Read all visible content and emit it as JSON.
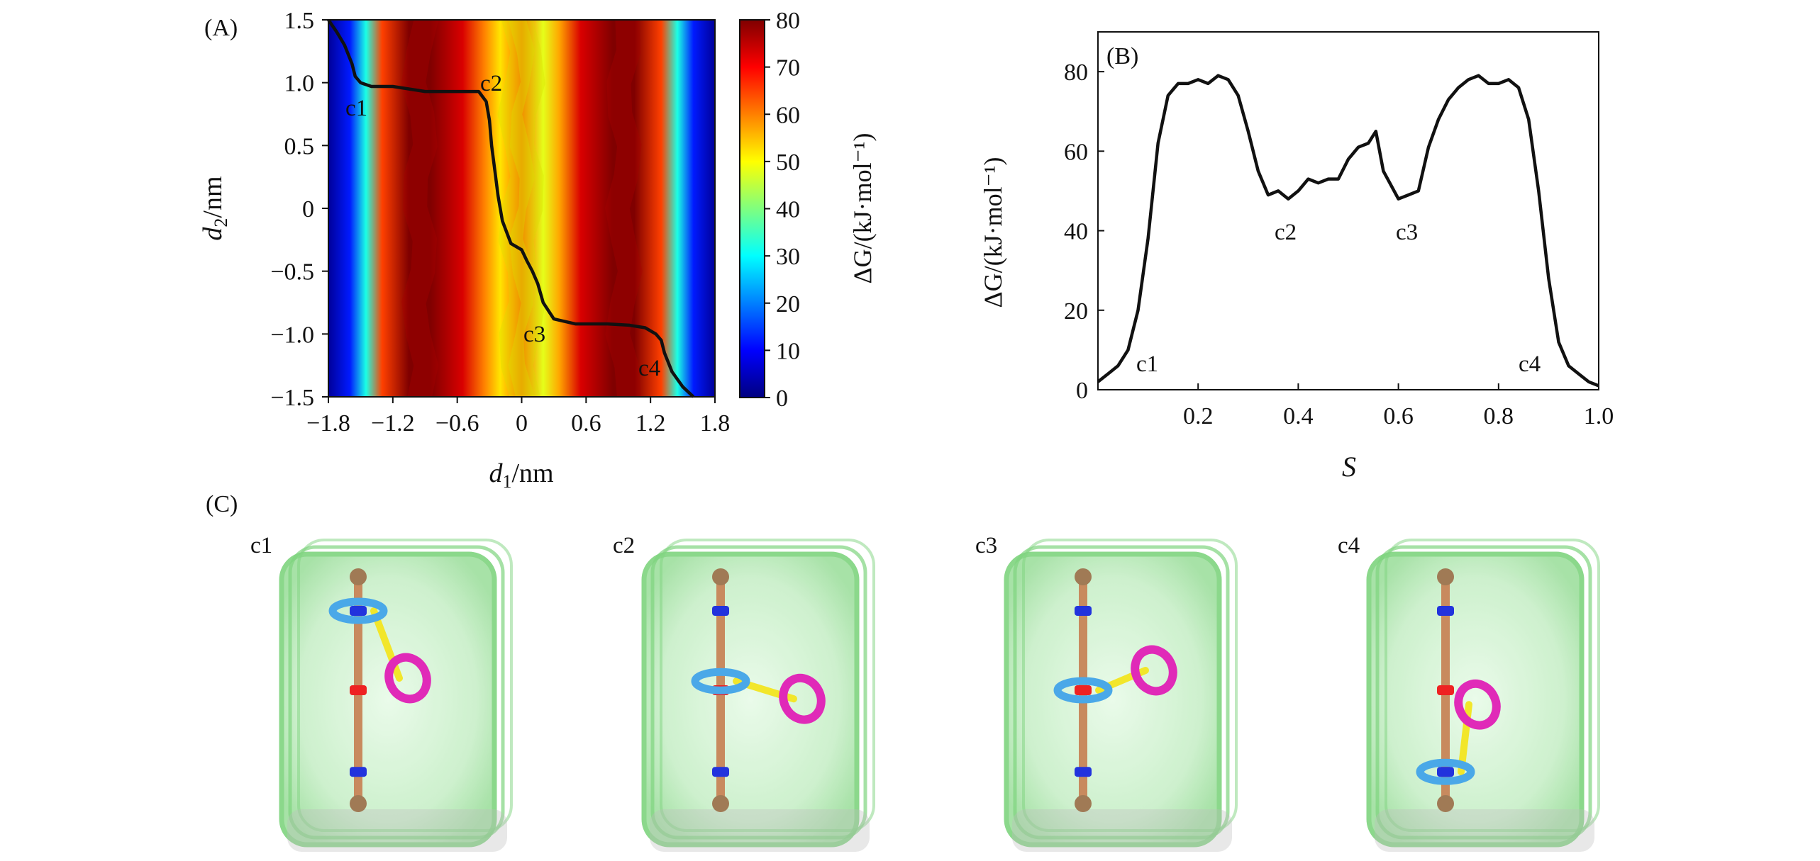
{
  "panels": {
    "A": {
      "label": "(A)",
      "xlabel_var": "d",
      "xlabel_sub": "1",
      "xlabel_unit": "/nm",
      "ylabel_var": "d",
      "ylabel_sub": "2",
      "ylabel_unit": "/nm",
      "colorbar_label": "ΔG/(kJ·mol⁻¹)",
      "colorbar_ticks": [
        "0",
        "10",
        "20",
        "30",
        "40",
        "50",
        "60",
        "70",
        "80"
      ],
      "x_ticks": [
        "−1.8",
        "−1.2",
        "−0.6",
        "0",
        "0.6",
        "1.2",
        "1.8"
      ],
      "y_ticks": [
        "1.5",
        "1.0",
        "0.5",
        "0",
        "−0.5",
        "−1.0",
        "−1.5"
      ],
      "points": {
        "c1": "c1",
        "c2": "c2",
        "c3": "c3",
        "c4": "c4"
      }
    },
    "B": {
      "label": "(B)",
      "xlabel": "S",
      "ylabel": "ΔG/(kJ·mol⁻¹)",
      "x_ticks": [
        "0.2",
        "0.4",
        "0.6",
        "0.8",
        "1.0"
      ],
      "y_ticks": [
        "0",
        "20",
        "40",
        "60",
        "80"
      ],
      "points": {
        "c1": "c1",
        "c2": "c2",
        "c3": "c3",
        "c4": "c4"
      }
    },
    "C": {
      "label": "(C)",
      "snapshots": [
        "c1",
        "c2",
        "c3",
        "c4"
      ]
    }
  },
  "colors": {
    "box_green": "#7fd47f",
    "rod": "#c88a5e",
    "rod_cap": "#a07a55",
    "blue_ring": "#4aa8e8",
    "blue_station": "#2233dd",
    "red_station": "#ee2222",
    "pink_ring": "#e02ab8",
    "linker": "#f2e62a"
  },
  "chart_data": [
    {
      "type": "heatmap",
      "panel": "A",
      "xlabel": "d1/nm",
      "ylabel": "d2/nm",
      "xlim": [
        -1.8,
        1.8
      ],
      "ylim": [
        -1.5,
        1.5
      ],
      "colorbar": {
        "label": "ΔG/(kJ·mol⁻¹)",
        "range": [
          0,
          80
        ],
        "colormap": "jet"
      },
      "x_ticks": [
        -1.8,
        -1.2,
        -0.6,
        0,
        0.6,
        1.2,
        1.8
      ],
      "y_ticks": [
        -1.5,
        -1.0,
        -0.5,
        0,
        0.5,
        1.0,
        1.5
      ],
      "energy_profile_along_d1": {
        "d1": [
          -1.8,
          -1.6,
          -1.45,
          -1.3,
          -1.05,
          -0.85,
          -0.55,
          -0.35,
          -0.2,
          0.0,
          0.2,
          0.35,
          0.55,
          0.85,
          1.05,
          1.3,
          1.45,
          1.6,
          1.8
        ],
        "dG": [
          2,
          12,
          32,
          65,
          80,
          80,
          73,
          60,
          52,
          62,
          48,
          57,
          73,
          80,
          80,
          65,
          32,
          12,
          2
        ]
      },
      "path": {
        "d1": [
          -1.8,
          -1.72,
          -1.65,
          -1.58,
          -1.55,
          -1.5,
          -1.4,
          -1.2,
          -0.9,
          -0.6,
          -0.4,
          -0.33,
          -0.3,
          -0.28,
          -0.25,
          -0.22,
          -0.18,
          -0.1,
          0.0,
          0.05,
          0.1,
          0.15,
          0.2,
          0.3,
          0.5,
          0.8,
          1.0,
          1.15,
          1.25,
          1.3,
          1.33,
          1.4,
          1.5,
          1.6
        ],
        "d2": [
          1.5,
          1.4,
          1.3,
          1.15,
          1.05,
          1.0,
          0.97,
          0.97,
          0.93,
          0.93,
          0.93,
          0.85,
          0.7,
          0.5,
          0.3,
          0.1,
          -0.1,
          -0.28,
          -0.33,
          -0.42,
          -0.5,
          -0.6,
          -0.75,
          -0.88,
          -0.92,
          -0.92,
          -0.93,
          -0.95,
          -1.0,
          -1.05,
          -1.15,
          -1.3,
          -1.42,
          -1.5
        ]
      },
      "annotations": [
        {
          "text": "c1",
          "d1": -1.6,
          "d2": 0.8
        },
        {
          "text": "c2",
          "d1": -0.3,
          "d2": 1.0
        },
        {
          "text": "c3",
          "d1": 0.05,
          "d2": -1.0
        },
        {
          "text": "c4",
          "d1": 1.05,
          "d2": -1.25
        }
      ]
    },
    {
      "type": "line",
      "panel": "B",
      "xlabel": "S",
      "ylabel": "ΔG/(kJ·mol⁻¹)",
      "xlim": [
        0,
        1.0
      ],
      "ylim": [
        0,
        90
      ],
      "x_ticks": [
        0.2,
        0.4,
        0.6,
        0.8,
        1.0
      ],
      "y_ticks": [
        0,
        20,
        40,
        60,
        80
      ],
      "series": [
        {
          "x": [
            0,
            0.02,
            0.04,
            0.06,
            0.08,
            0.1,
            0.12,
            0.14,
            0.16,
            0.18,
            0.2,
            0.22,
            0.24,
            0.26,
            0.28,
            0.3,
            0.32,
            0.34,
            0.36,
            0.38,
            0.4,
            0.42,
            0.44,
            0.46,
            0.48,
            0.5,
            0.52,
            0.54,
            0.555,
            0.57,
            0.6,
            0.62,
            0.64,
            0.66,
            0.68,
            0.7,
            0.72,
            0.74,
            0.76,
            0.78,
            0.8,
            0.82,
            0.84,
            0.86,
            0.88,
            0.9,
            0.92,
            0.94,
            0.96,
            0.98,
            1.0
          ],
          "y": [
            2,
            4,
            6,
            10,
            20,
            38,
            62,
            74,
            77,
            77,
            78,
            77,
            79,
            78,
            74,
            65,
            55,
            49,
            50,
            48,
            50,
            53,
            52,
            53,
            53,
            58,
            61,
            62,
            65,
            55,
            48,
            49,
            50,
            61,
            68,
            73,
            76,
            78,
            79,
            77,
            77,
            78,
            76,
            68,
            50,
            28,
            12,
            6,
            4,
            2,
            1
          ]
        }
      ],
      "annotations": [
        {
          "text": "c1",
          "x": 0.1,
          "y": 8
        },
        {
          "text": "c2",
          "x": 0.38,
          "y": 42
        },
        {
          "text": "c3",
          "x": 0.62,
          "y": 42
        },
        {
          "text": "c4",
          "x": 0.87,
          "y": 8
        }
      ]
    }
  ]
}
